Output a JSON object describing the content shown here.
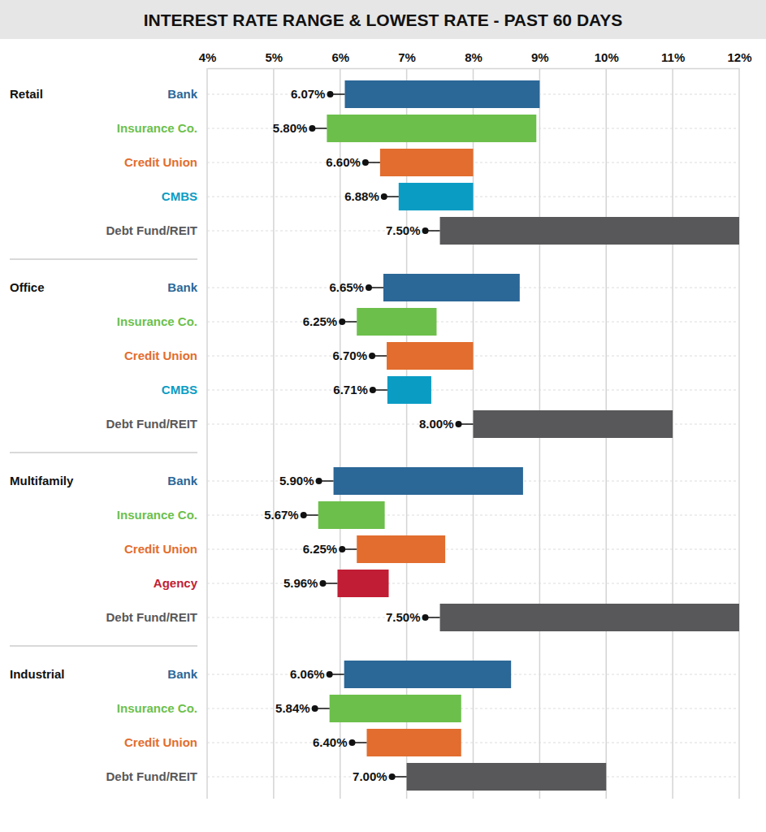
{
  "chart_data": {
    "type": "bar",
    "orientation": "horizontal",
    "title": "INTEREST RATE RANGE & LOWEST RATE - PAST 60 DAYS",
    "xlim": [
      4,
      12
    ],
    "xticks": [
      {
        "value": 4,
        "label": "4%"
      },
      {
        "value": 5,
        "label": "5%"
      },
      {
        "value": 6,
        "label": "6%"
      },
      {
        "value": 7,
        "label": "7%"
      },
      {
        "value": 8,
        "label": "8%"
      },
      {
        "value": 9,
        "label": "9%"
      },
      {
        "value": 10,
        "label": "10%"
      },
      {
        "value": 11,
        "label": "11%"
      },
      {
        "value": 12,
        "label": "12%"
      }
    ],
    "grid": true,
    "data_labels": true,
    "groups": [
      {
        "name": "Retail",
        "categories": [
          "Bank",
          "Insurance Co.",
          "Credit Union",
          "CMBS",
          "Debt Fund/REIT"
        ],
        "low": [
          6.07,
          5.8,
          6.6,
          6.88,
          7.5
        ],
        "high": [
          9.0,
          8.95,
          8.0,
          8.0,
          12.0
        ],
        "value_labels": [
          "6.07%",
          "5.80%",
          "6.60%",
          "6.88%",
          "7.50%"
        ],
        "colors": [
          "#2b6797",
          "#6cbf4b",
          "#e26d2e",
          "#0b9cc4",
          "#58585a"
        ]
      },
      {
        "name": "Office",
        "categories": [
          "Bank",
          "Insurance Co.",
          "Credit Union",
          "CMBS",
          "Debt Fund/REIT"
        ],
        "low": [
          6.65,
          6.25,
          6.7,
          6.71,
          8.0
        ],
        "high": [
          8.7,
          7.45,
          8.0,
          7.37,
          11.0
        ],
        "value_labels": [
          "6.65%",
          "6.25%",
          "6.70%",
          "6.71%",
          "8.00%"
        ],
        "colors": [
          "#2b6797",
          "#6cbf4b",
          "#e26d2e",
          "#0b9cc4",
          "#58585a"
        ]
      },
      {
        "name": "Multifamily",
        "categories": [
          "Bank",
          "Insurance Co.",
          "Credit Union",
          "Agency",
          "Debt Fund/REIT"
        ],
        "low": [
          5.9,
          5.67,
          6.25,
          5.96,
          7.5
        ],
        "high": [
          8.75,
          6.67,
          7.58,
          6.73,
          12.0
        ],
        "value_labels": [
          "5.90%",
          "5.67%",
          "6.25%",
          "5.96%",
          "7.50%"
        ],
        "colors": [
          "#2b6797",
          "#6cbf4b",
          "#e26d2e",
          "#c11d34",
          "#58585a"
        ]
      },
      {
        "name": "Industrial",
        "categories": [
          "Bank",
          "Insurance Co.",
          "Credit Union",
          "Debt Fund/REIT"
        ],
        "low": [
          6.06,
          5.84,
          6.4,
          7.0
        ],
        "high": [
          8.57,
          7.82,
          7.82,
          10.0
        ],
        "value_labels": [
          "6.06%",
          "5.84%",
          "6.40%",
          "7.00%"
        ],
        "colors": [
          "#2b6797",
          "#6cbf4b",
          "#e26d2e",
          "#58585a"
        ]
      }
    ]
  }
}
